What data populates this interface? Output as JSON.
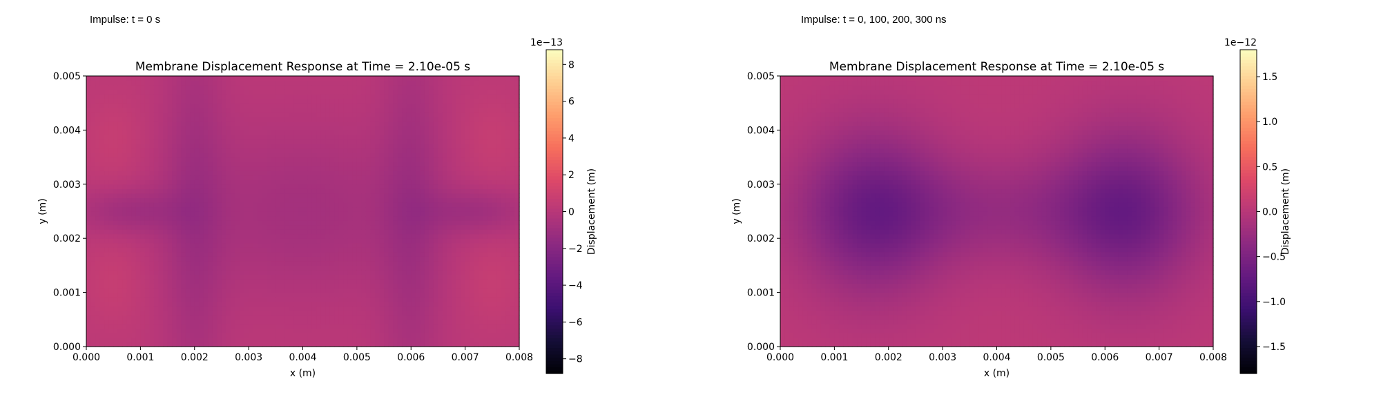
{
  "panels": [
    {
      "caption": "Impulse: t = 0 s",
      "chart_data": {
        "type": "heatmap",
        "title": "Membrane Displacement Response at Time = 2.10e-05 s",
        "xlabel": "x (m)",
        "ylabel": "y (m)",
        "xlim": [
          0,
          0.008
        ],
        "ylim": [
          0,
          0.005
        ],
        "x_ticks": [
          "0.000",
          "0.001",
          "0.002",
          "0.003",
          "0.004",
          "0.005",
          "0.006",
          "0.007",
          "0.008"
        ],
        "y_ticks": [
          "0.000",
          "0.001",
          "0.002",
          "0.003",
          "0.004",
          "0.005"
        ],
        "colormap": "magma",
        "colorbar": {
          "label": "Displacement (m)",
          "multiplier": "1e−13",
          "vmin": -8.8,
          "vmax": 8.8,
          "ticks": [
            -8,
            -6,
            -4,
            -2,
            0,
            2,
            4,
            6,
            8
          ],
          "tick_labels": [
            "−8",
            "−6",
            "−4",
            "−2",
            "0",
            "2",
            "4",
            "6",
            "8"
          ]
        },
        "base_value": 0.2,
        "features": [
          {
            "x": 0.002,
            "y": 0.0025,
            "sx": 0.0004,
            "sy": 0.003,
            "amp": -1.0
          },
          {
            "x": 0.006,
            "y": 0.0025,
            "sx": 0.0004,
            "sy": 0.003,
            "amp": -1.0
          },
          {
            "x": 0.004,
            "y": 0.0025,
            "sx": 0.0016,
            "sy": 0.0011,
            "amp": -1.0
          },
          {
            "x": 0.0008,
            "y": 0.0025,
            "sx": 0.0007,
            "sy": 0.0003,
            "amp": -1.1
          },
          {
            "x": 0.0072,
            "y": 0.0025,
            "sx": 0.0007,
            "sy": 0.0003,
            "amp": -1.1
          },
          {
            "x": 0.0005,
            "y": 0.0038,
            "sx": 0.0004,
            "sy": 0.0006,
            "amp": 0.5
          },
          {
            "x": 0.0005,
            "y": 0.0012,
            "sx": 0.0004,
            "sy": 0.0006,
            "amp": 0.5
          },
          {
            "x": 0.0075,
            "y": 0.0038,
            "sx": 0.0004,
            "sy": 0.0006,
            "amp": 0.5
          },
          {
            "x": 0.0075,
            "y": 0.0012,
            "sx": 0.0004,
            "sy": 0.0006,
            "amp": 0.5
          }
        ]
      }
    },
    {
      "caption": "Impulse: t = 0, 100, 200, 300 ns",
      "chart_data": {
        "type": "heatmap",
        "title": "Membrane Displacement Response at Time = 2.10e-05 s",
        "xlabel": "x (m)",
        "ylabel": "y (m)",
        "xlim": [
          0,
          0.008
        ],
        "ylim": [
          0,
          0.005
        ],
        "x_ticks": [
          "0.000",
          "0.001",
          "0.002",
          "0.003",
          "0.004",
          "0.005",
          "0.006",
          "0.007",
          "0.008"
        ],
        "y_ticks": [
          "0.000",
          "0.001",
          "0.002",
          "0.003",
          "0.004",
          "0.005"
        ],
        "colormap": "magma",
        "colorbar": {
          "label": "Displacement (m)",
          "multiplier": "1e−12",
          "vmin": -1.8,
          "vmax": 1.8,
          "ticks": [
            -1.5,
            -1.0,
            -0.5,
            0.0,
            0.5,
            1.0,
            1.5
          ],
          "tick_labels": [
            "−1.5",
            "−1.0",
            "−0.5",
            "0.0",
            "0.5",
            "1.0",
            "1.5"
          ]
        },
        "base_value": 0.05,
        "features": [
          {
            "x": 0.0017,
            "y": 0.0025,
            "sx": 0.0009,
            "sy": 0.0011,
            "amp": -0.6
          },
          {
            "x": 0.0064,
            "y": 0.0025,
            "sx": 0.0009,
            "sy": 0.0011,
            "amp": -0.6
          },
          {
            "x": 0.004,
            "y": 0.0025,
            "sx": 0.0022,
            "sy": 0.0007,
            "amp": -0.3
          }
        ]
      }
    }
  ]
}
